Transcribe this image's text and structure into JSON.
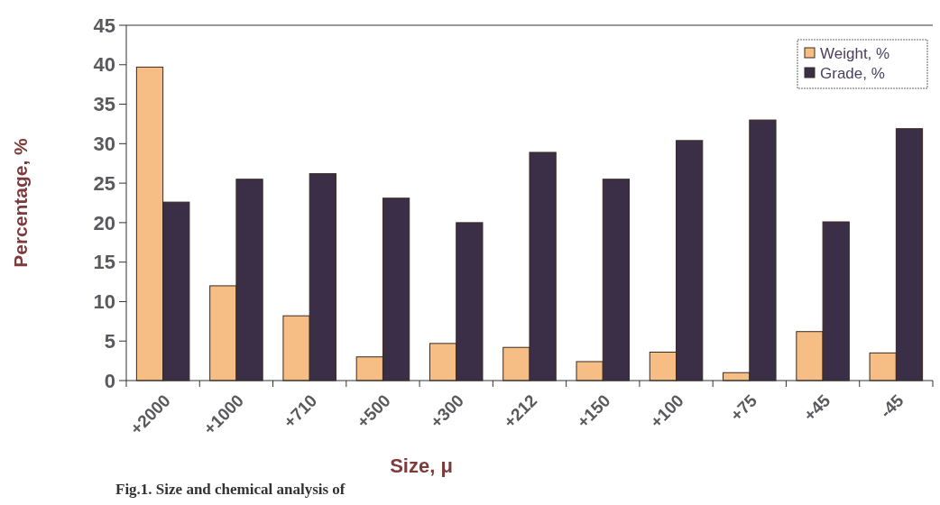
{
  "chart_data": {
    "type": "bar",
    "xlabel": "Size, μ",
    "ylabel": "Percentage, %",
    "categories": [
      "+2000",
      "+1000",
      "+710",
      "+500",
      "+300",
      "+212",
      "+150",
      "+100",
      "+75",
      "+45",
      "-45"
    ],
    "series": [
      {
        "name": "Weight, %",
        "color": "#f6bd85",
        "values": [
          39.7,
          12,
          8.2,
          3,
          4.7,
          4.2,
          2.4,
          3.6,
          1,
          6.2,
          3.5
        ]
      },
      {
        "name": "Grade, %",
        "color": "#3b2f47",
        "values": [
          22.6,
          25.5,
          26.2,
          23.1,
          20,
          28.9,
          25.5,
          30.4,
          33,
          20.1,
          31.9
        ]
      }
    ],
    "ylim": [
      0,
      45
    ],
    "yticks": [
      0,
      5,
      10,
      15,
      20,
      25,
      30,
      35,
      40,
      45
    ],
    "grid": false,
    "legend": "top right",
    "annotations": [
      "Fig.1. Size and chemical analysis of"
    ]
  }
}
